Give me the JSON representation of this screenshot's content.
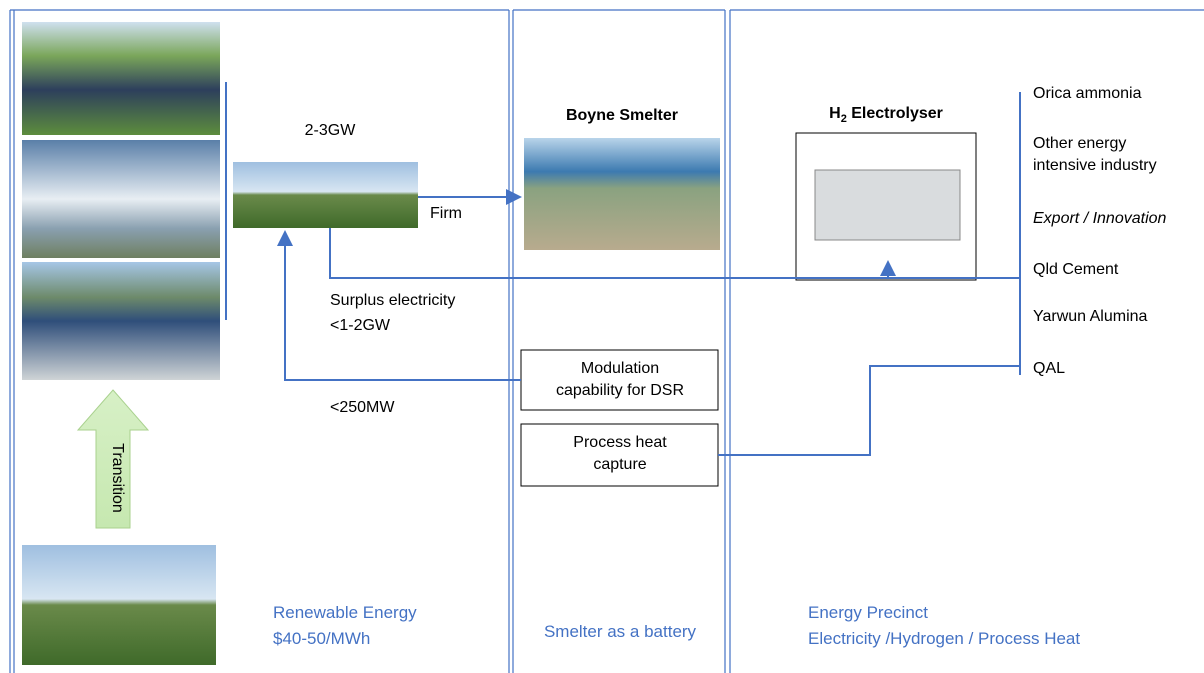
{
  "grid": {
    "label": "2-3GW",
    "firm": "Firm",
    "surplus_line1": "Surplus electricity",
    "surplus_line2": "<1-2GW",
    "dsr_flow": "<250MW"
  },
  "transition": "Transition",
  "smelter": {
    "title": "Boyne Smelter",
    "modulation": "Modulation capability for DSR",
    "heat": "Process heat capture"
  },
  "electrolyser": {
    "label_main": "H",
    "label_sub": "2",
    "label_rest": " Electrolyser"
  },
  "users": [
    "Orica ammonia",
    "Other energy intensive industry",
    "Export / Innovation",
    "Qld Cement",
    "Yarwun Alumina",
    "QAL"
  ],
  "footers": {
    "renewable_line1": "Renewable Energy",
    "renewable_line2": "$40-50/MWh",
    "smelter": "Smelter as a battery",
    "precinct_line1": "Energy Precinct",
    "precinct_line2": "Electricity /Hydrogen / Process Heat"
  }
}
